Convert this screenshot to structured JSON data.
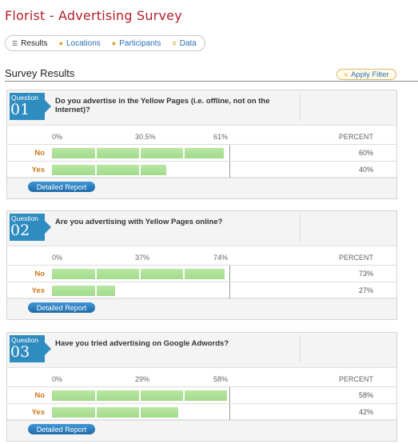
{
  "page_title": "Florist - Advertising Survey",
  "tabs": [
    {
      "label": "Results",
      "icon": "list-icon",
      "active": true
    },
    {
      "label": "Locations",
      "icon": "pin-icon",
      "active": false
    },
    {
      "label": "Participants",
      "icon": "pin-icon",
      "active": false
    },
    {
      "label": "Data",
      "icon": "data-icon",
      "active": false
    }
  ],
  "section_title": "Survey Results",
  "apply_filter_label": "Apply Filter",
  "column_header": "PERCENT",
  "detail_button_label": "Detailed Report",
  "questions": [
    {
      "tag": "Question",
      "number": "01",
      "text": "Do you advertise in the Yellow Pages (i.e. offline, not on the Internet)?",
      "scale": [
        "0%",
        "30.5%",
        "61%"
      ],
      "rows": [
        {
          "label": "No",
          "value": 60,
          "display": "60%"
        },
        {
          "label": "Yes",
          "value": 40,
          "display": "40%"
        }
      ]
    },
    {
      "tag": "Question",
      "number": "02",
      "text": "Are you advertising with Yellow Pages online?",
      "scale": [
        "0%",
        "37%",
        "74%"
      ],
      "rows": [
        {
          "label": "No",
          "value": 73,
          "display": "73%"
        },
        {
          "label": "Yes",
          "value": 27,
          "display": "27%"
        }
      ]
    },
    {
      "tag": "Question",
      "number": "03",
      "text": "Have you tried advertising on Google Adwords?",
      "scale": [
        "0%",
        "29%",
        "58%"
      ],
      "rows": [
        {
          "label": "No",
          "value": 58,
          "display": "58%"
        },
        {
          "label": "Yes",
          "value": 42,
          "display": "42%"
        }
      ]
    }
  ]
}
